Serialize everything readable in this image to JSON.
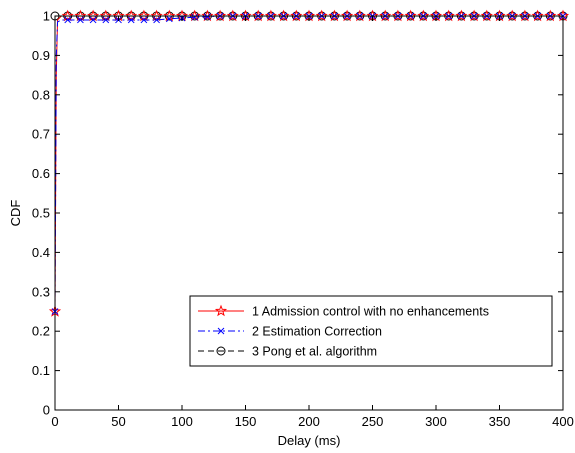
{
  "chart_data": {
    "type": "line",
    "title": "",
    "xlabel": "Delay (ms)",
    "ylabel": "CDF",
    "xlim": [
      0,
      400
    ],
    "ylim": [
      0,
      1
    ],
    "x_ticks": [
      0,
      50,
      100,
      150,
      200,
      250,
      300,
      350,
      400
    ],
    "y_ticks": [
      0,
      0.1,
      0.2,
      0.3,
      0.4,
      0.5,
      0.6,
      0.7,
      0.8,
      0.9,
      1
    ],
    "grid": false,
    "legend_position": "bottom-right",
    "series": [
      {
        "name": "1 Admission control with no enhancements",
        "color": "#ff0000",
        "line_style": "solid",
        "marker": "star",
        "x": [
          0,
          1,
          2,
          5,
          10,
          20,
          30,
          40,
          50,
          60,
          70,
          80,
          90,
          100,
          110,
          120,
          130,
          140,
          150,
          160,
          170,
          180,
          190,
          200,
          210,
          220,
          230,
          240,
          250,
          260,
          270,
          280,
          290,
          300,
          310,
          320,
          330,
          340,
          350,
          360,
          370,
          380,
          390,
          400
        ],
        "y": [
          0.25,
          0.85,
          0.99,
          1,
          1,
          1,
          1,
          1,
          1,
          1,
          1,
          1,
          1,
          1,
          1,
          1,
          1,
          1,
          1,
          1,
          1,
          1,
          1,
          1,
          1,
          1,
          1,
          1,
          1,
          1,
          1,
          1,
          1,
          1,
          1,
          1,
          1,
          1,
          1,
          1,
          1,
          1,
          1,
          1
        ]
      },
      {
        "name": "2 Estimation Correction",
        "color": "#0000ff",
        "line_style": "dashdot",
        "marker": "x",
        "x": [
          0,
          1,
          2,
          5,
          10,
          20,
          30,
          40,
          50,
          60,
          70,
          80,
          90,
          100,
          110,
          120,
          130,
          140,
          150,
          160,
          170,
          180,
          190,
          200,
          210,
          220,
          230,
          240,
          250,
          260,
          270,
          280,
          290,
          300,
          310,
          320,
          330,
          340,
          350,
          360,
          370,
          380,
          390,
          400
        ],
        "y": [
          0.25,
          0.9,
          0.985,
          0.99,
          0.99,
          0.99,
          0.99,
          0.99,
          0.99,
          0.99,
          0.99,
          0.99,
          0.993,
          0.995,
          0.997,
          0.998,
          1,
          1,
          1,
          1,
          1,
          1,
          1,
          1,
          1,
          1,
          1,
          1,
          1,
          1,
          1,
          1,
          1,
          1,
          1,
          1,
          1,
          1,
          1,
          1,
          1,
          1,
          1,
          1
        ]
      },
      {
        "name": "3 Pong et al. algorithm",
        "color": "#000000",
        "line_style": "dashed",
        "marker": "circle",
        "x": [
          0,
          1,
          2,
          5,
          10,
          20,
          30,
          40,
          50,
          60,
          70,
          80,
          90,
          100,
          110,
          120,
          130,
          140,
          150,
          160,
          170,
          180,
          190,
          200,
          210,
          220,
          230,
          240,
          250,
          260,
          270,
          280,
          290,
          300,
          310,
          320,
          330,
          340,
          350,
          360,
          370,
          380,
          390,
          400
        ],
        "y": [
          1,
          1,
          1,
          1,
          1,
          1,
          1,
          1,
          1,
          1,
          1,
          1,
          1,
          1,
          1,
          1,
          1,
          1,
          1,
          1,
          1,
          1,
          1,
          1,
          1,
          1,
          1,
          1,
          1,
          1,
          1,
          1,
          1,
          1,
          1,
          1,
          1,
          1,
          1,
          1,
          1,
          1,
          1,
          1
        ]
      }
    ]
  }
}
